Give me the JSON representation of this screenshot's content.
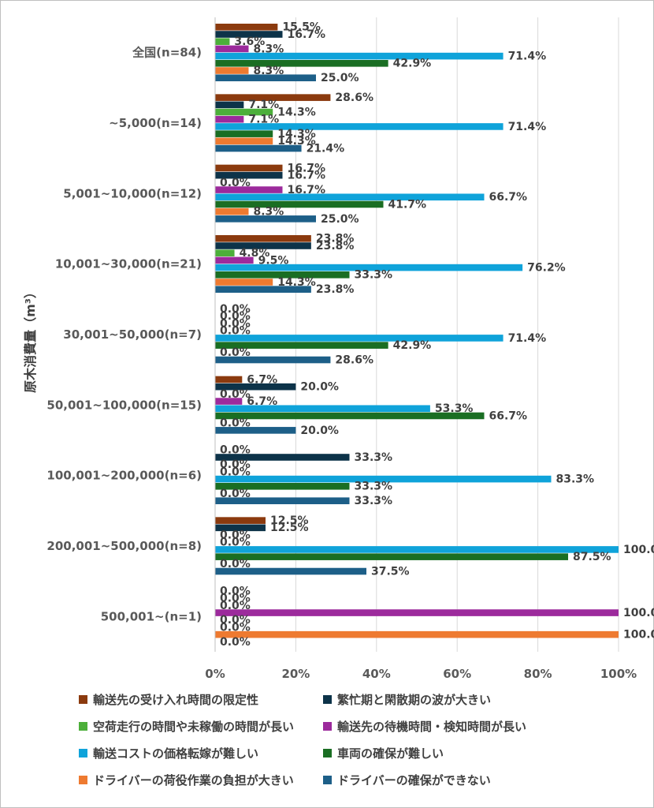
{
  "chart_data": {
    "type": "bar",
    "orientation": "horizontal",
    "ylabel": "原木消費量（m³）",
    "xlim": [
      0,
      100
    ],
    "xticks": [
      "0%",
      "20%",
      "40%",
      "60%",
      "80%",
      "100%"
    ],
    "categories": [
      "全国(n=84)",
      "~5,000(n=14)",
      "5,001~10,000(n=12)",
      "10,001~30,000(n=21)",
      "30,001~50,000(n=7)",
      "50,001~100,000(n=15)",
      "100,001~200,000(n=6)",
      "200,001~500,000(n=8)",
      "500,001~(n=1)"
    ],
    "series": [
      {
        "name": "輸送先の受け入れ時間の限定性",
        "color": "#8B3A0E",
        "values": [
          15.5,
          28.6,
          16.7,
          23.8,
          0.0,
          6.7,
          0.0,
          12.5,
          0.0
        ]
      },
      {
        "name": "繁忙期と閑散期の波が大きい",
        "color": "#0D3349",
        "values": [
          16.7,
          7.1,
          16.7,
          23.8,
          0.0,
          20.0,
          33.3,
          12.5,
          0.0
        ]
      },
      {
        "name": "空荷走行の時間や未稼働の時間が長い",
        "color": "#4CAF3A",
        "values": [
          3.6,
          14.3,
          0.0,
          4.8,
          0.0,
          0.0,
          0.0,
          0.0,
          0.0
        ]
      },
      {
        "name": "輸送先の待機時間・検知時間が長い",
        "color": "#9C2A9C",
        "values": [
          8.3,
          7.1,
          16.7,
          9.5,
          0.0,
          6.7,
          0.0,
          0.0,
          100.0
        ]
      },
      {
        "name": "輸送コストの価格転嫁が難しい",
        "color": "#0FA3DA",
        "values": [
          71.4,
          71.4,
          66.7,
          76.2,
          71.4,
          53.3,
          83.3,
          100.0,
          0.0
        ]
      },
      {
        "name": "車両の確保が難しい",
        "color": "#1A6E23",
        "values": [
          42.9,
          14.3,
          41.7,
          33.3,
          42.9,
          66.7,
          33.3,
          87.5,
          0.0
        ]
      },
      {
        "name": "ドライバーの荷役作業の負担が大きい",
        "color": "#EE7A30",
        "values": [
          8.3,
          14.3,
          8.3,
          14.3,
          0.0,
          0.0,
          0.0,
          0.0,
          100.0
        ]
      },
      {
        "name": "ドライバーの確保ができない",
        "color": "#1D5F88",
        "values": [
          25.0,
          21.4,
          25.0,
          23.8,
          28.6,
          20.0,
          33.3,
          37.5,
          0.0
        ]
      }
    ],
    "data_label_format": "{value}%",
    "legend_position": "bottom"
  }
}
